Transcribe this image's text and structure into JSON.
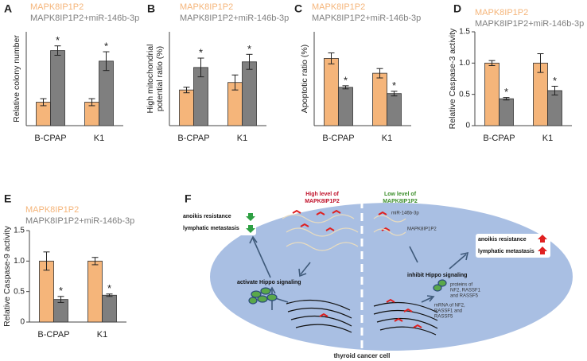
{
  "chart_data": [
    {
      "type": "bar",
      "panel": "A",
      "ylabel": [
        "Relative colony number"
      ],
      "categories": [
        "B-CPAP",
        "K1"
      ],
      "ylim": [
        0,
        4
      ],
      "series": [
        {
          "name": "MAPK8IP1P2",
          "color": "#f5b57a",
          "values": [
            1.0,
            1.0
          ],
          "errors": [
            0.15,
            0.15
          ]
        },
        {
          "name": "MAPK8IP1P2+miR-146b-3p",
          "color": "#7f7f7f",
          "values": [
            3.2,
            2.75
          ],
          "errors": [
            0.2,
            0.4
          ],
          "annotations": [
            "*",
            "*"
          ]
        }
      ]
    },
    {
      "type": "bar",
      "panel": "B",
      "ylabel": [
        "High mitochondrial",
        "potential ratio (%)"
      ],
      "categories": [
        "B-CPAP",
        "K1"
      ],
      "ylim": [
        0,
        50
      ],
      "series": [
        {
          "name": "MAPK8IP1P2",
          "color": "#f5b57a",
          "values": [
            19,
            23
          ],
          "errors": [
            1.5,
            4
          ]
        },
        {
          "name": "MAPK8IP1P2+miR-146b-3p",
          "color": "#7f7f7f",
          "values": [
            31,
            34
          ],
          "errors": [
            5,
            4
          ],
          "annotations": [
            "*",
            "*"
          ]
        }
      ]
    },
    {
      "type": "bar",
      "panel": "C",
      "ylabel": [
        "Apoptotic ratio (%)"
      ],
      "categories": [
        "B-CPAP",
        "K1"
      ],
      "ylim": [
        0,
        60
      ],
      "series": [
        {
          "name": "MAPK8IP1P2",
          "color": "#f5b57a",
          "values": [
            43,
            33.5
          ],
          "errors": [
            3.5,
            3
          ]
        },
        {
          "name": "MAPK8IP1P2+miR-146b-3p",
          "color": "#7f7f7f",
          "values": [
            24.5,
            20.5
          ],
          "errors": [
            1,
            1.5
          ],
          "annotations": [
            "*",
            "*"
          ]
        }
      ]
    },
    {
      "type": "bar",
      "panel": "D",
      "ylabel": [
        "Relative Caspase-3 activity"
      ],
      "categories": [
        "B-CPAP",
        "K1"
      ],
      "ylim": [
        0,
        1.5
      ],
      "yticks": [
        0,
        0.5,
        {
          "value": 1,
          "label": "1.0"
        },
        1.5
      ],
      "series": [
        {
          "name": "MAPK8IP1P2",
          "color": "#f5b57a",
          "values": [
            1.0,
            1.0
          ],
          "errors": [
            0.04,
            0.15
          ]
        },
        {
          "name": "MAPK8IP1P2+miR-146b-3p",
          "color": "#7f7f7f",
          "values": [
            0.43,
            0.56
          ],
          "errors": [
            0.02,
            0.07
          ],
          "annotations": [
            "*",
            "*"
          ]
        }
      ]
    },
    {
      "type": "bar",
      "panel": "E",
      "ylabel": [
        "Relative Caspase-9 activity"
      ],
      "categories": [
        "B-CPAP",
        "K1"
      ],
      "ylim": [
        0,
        1.5
      ],
      "yticks": [
        0,
        0.5,
        {
          "value": 1,
          "label": "1.0"
        },
        1.5
      ],
      "series": [
        {
          "name": "MAPK8IP1P2",
          "color": "#f5b57a",
          "values": [
            1.0,
            1.0
          ],
          "errors": [
            0.15,
            0.06
          ]
        },
        {
          "name": "MAPK8IP1P2+miR-146b-3p",
          "color": "#7f7f7f",
          "values": [
            0.37,
            0.44
          ],
          "errors": [
            0.05,
            0.02
          ],
          "annotations": [
            "*",
            "*"
          ]
        }
      ]
    }
  ],
  "diagram": {
    "panel": "F",
    "high_label": [
      "High level of",
      "MAPK8IP1P2"
    ],
    "low_label": [
      "Low level of",
      "MAPK8IP1P2"
    ],
    "left_effects": [
      "anoikis resistance",
      "lymphatic metastasis"
    ],
    "right_effects": [
      "anoikis resistance",
      "lymphatic metastasis"
    ],
    "left_signal": "activate Hippo signaling",
    "right_signal": "inhibit Hippo signaling",
    "mirna": "miR-146b-3p",
    "lnc": "MAPK8IP1P2",
    "proteins": [
      "proteins of",
      "NF2, RASSF1",
      "and RASSF5"
    ],
    "mrna": [
      "mRNA of NF2,",
      "RASSF1 and",
      "RASSF5"
    ],
    "caption": "thyroid cancer cell"
  }
}
